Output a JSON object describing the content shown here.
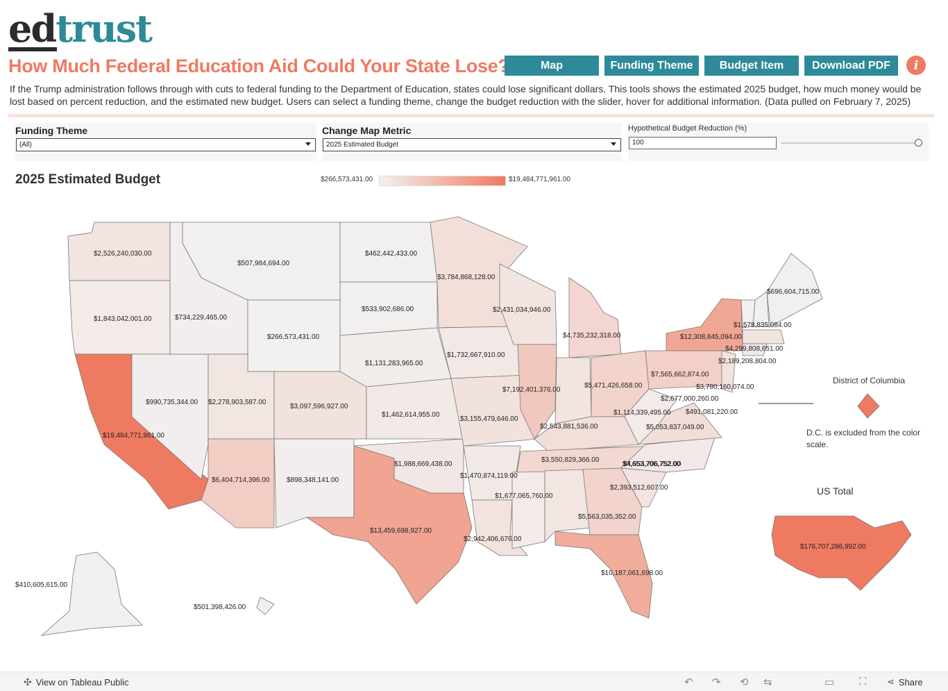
{
  "brand": {
    "logo_left": "ed",
    "logo_right": "trust"
  },
  "header": {
    "title": "How Much Federal Education Aid Could Your State Lose?",
    "description": "If the Trump administration follows through with cuts to federal funding to the Department of Education, states could lose significant dollars. This tools shows the estimated 2025 budget, how much money would be lost based on percent reduction, and the estimated new budget. Users can select a funding theme, change the budget reduction with the slider, hover for additional information. (Data pulled on February 7, 2025)"
  },
  "nav": {
    "map": "Map",
    "funding_theme": "Funding Theme",
    "budget_item": "Budget Item",
    "download_pdf": "Download PDF",
    "info": "i"
  },
  "filters": {
    "funding_theme": {
      "label": "Funding Theme",
      "value": "(All)"
    },
    "map_metric": {
      "label": "Change Map Metric",
      "value": "2025 Estimated Budget"
    },
    "reduction": {
      "label": "Hypothetical Budget Reduction (%)",
      "value": "100",
      "slider_fraction": 1.0
    }
  },
  "map": {
    "heading": "2025 Estimated Budget",
    "legend_min": "$266,573,431.00",
    "legend_max": "$19,484,771,961.00",
    "color_low": "#f3f1f0",
    "color_high": "#ef7a62",
    "states": {
      "WA": "$2,526,240,030.00",
      "OR": "$1,843,042,001.00",
      "CA": "$19,484,771,961.00",
      "NV": "$990,735,344.00",
      "ID": "$734,229,465.00",
      "MT": "$507,984,694.00",
      "WY": "$266,573,431.00",
      "UT": "$2,278,903,587.00",
      "AZ": "$6,404,714,396.00",
      "CO": "$3,097,596,927.00",
      "NM": "$898,348,141.00",
      "ND": "$462,442,433.00",
      "SD": "$533,902,686.00",
      "NE": "$1,131,283,965.00",
      "KS": "$1,462,614,955.00",
      "OK": "$1,988,669,438.00",
      "TX": "$13,459,698,927.00",
      "MN": "$3,784,868,128.00",
      "IA": "$1,732,667,910.00",
      "MO": "$3,155,479,646.00",
      "AR": "$1,470,874,119.00",
      "LA": "$2,942,406,676.00",
      "WI": "$2,431,034,946.00",
      "IL": "$7,192,401,376.00",
      "MS": "$1,677,065,760.00",
      "MI": "$4,735,232,318.00",
      "IN": "$2,543,881,536.00",
      "OH": "$5,471,426,658.00",
      "KY": "$3,550,829,366.00",
      "TN": "$4,653,706,752.00",
      "AL": "$5,563,035,352.00",
      "GA": "$2,393,512,607.00",
      "FL": "$10,187,061,698.00",
      "SC": "$2,393,512,607.00",
      "NC": "$4,653,706,752.00",
      "VA": "$5,053,837,049.00",
      "WV": "$1,114,339,495.00",
      "PA": "$7,565,662,874.00",
      "NY": "$12,308,845,094.00",
      "NJ": "$3,780,160,074.00",
      "DE": "$2,677,000,260.00",
      "MD": "$491,081,220.00",
      "CT": "$2,189,208,804.00",
      "MA": "$4,299,808,651.00",
      "VT": "$1,578,835,084.00",
      "NH": "$1,578,835,084.00",
      "ME": "$696,604,715.00",
      "AK": "$410,605,615.00",
      "HI": "$501,398,426.00"
    },
    "dc": {
      "title": "District of Columbia",
      "note": "D.C. is excluded from the color scale."
    },
    "us_total": {
      "title": "US Total",
      "value": "$176,707,286,992.00"
    }
  },
  "footer": {
    "view_link": "View on Tableau Public",
    "share": "Share"
  }
}
